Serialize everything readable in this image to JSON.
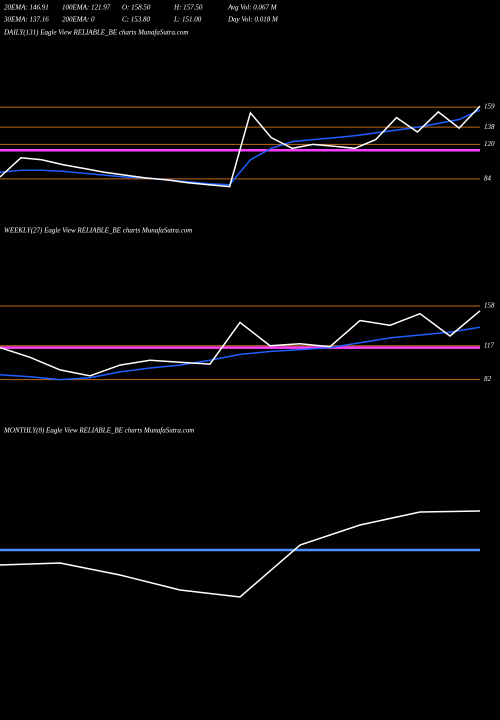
{
  "header": {
    "lines": [
      [
        "20EMA: 146.91",
        "100EMA: 121.97",
        "O: 158.50",
        "H: 157.50",
        "Avg Vol: 0.067 M"
      ],
      [
        "30EMA: 137.16",
        "200EMA: 0",
        "C: 153.80",
        "L: 151.00",
        "Day Vol: 0.018 M"
      ]
    ]
  },
  "chart_data": [
    {
      "type": "line",
      "title": "DAILY(131) Eagle  View  RELIABLE_BE charts MunafaSutra.com",
      "ylim": [
        62,
        229
      ],
      "yticks": [
        84,
        120,
        138,
        159
      ],
      "grid": true,
      "grid_color": "#c06a1a",
      "series": [
        {
          "color": "#ff40ff",
          "values": [
            114,
            114
          ]
        },
        {
          "color": "#1f5fff",
          "values": [
            91,
            93,
            93,
            92,
            90,
            88,
            86,
            85,
            83,
            81,
            79,
            78,
            104,
            116,
            123,
            125,
            127,
            129,
            132,
            135,
            138,
            142,
            146,
            156
          ]
        },
        {
          "color": "#ffffff",
          "values": [
            86,
            106,
            104,
            99,
            95,
            91,
            88,
            85,
            83,
            80,
            78,
            76,
            153,
            127,
            116,
            120,
            118,
            116,
            125,
            148,
            133,
            154,
            137,
            160
          ]
        }
      ]
    },
    {
      "type": "line",
      "title": "WEEKLY(27) Eagle  View  RELIABLE_BE charts MunafaSutra.com",
      "ylim": [
        61,
        226
      ],
      "yticks": [
        82,
        117,
        158
      ],
      "grid": true,
      "grid_color": "#c06a1a",
      "series": [
        {
          "color": "#ff40ff",
          "values": [
            115,
            115
          ]
        },
        {
          "color": "#1f5fff",
          "values": [
            87,
            85,
            82,
            84,
            90,
            94,
            97,
            102,
            108,
            111,
            113,
            115,
            120,
            125,
            128,
            131,
            136
          ]
        },
        {
          "color": "#ffffff",
          "values": [
            115,
            105,
            92,
            86,
            97,
            102,
            100,
            98,
            141,
            117,
            119,
            116,
            143,
            138,
            150,
            127,
            153
          ]
        }
      ]
    },
    {
      "type": "line",
      "title": "MONTHLY(8) Eagle  View  RELIABLE_BE charts MunafaSutra.com",
      "ylim": [
        0,
        200
      ],
      "grid": false,
      "series": [
        {
          "color": "#4f8fff",
          "values": [
            90,
            90
          ]
        },
        {
          "color": "#ffffff",
          "values": [
            75,
            77,
            65,
            50,
            43,
            95,
            115,
            128,
            129
          ]
        }
      ]
    }
  ]
}
